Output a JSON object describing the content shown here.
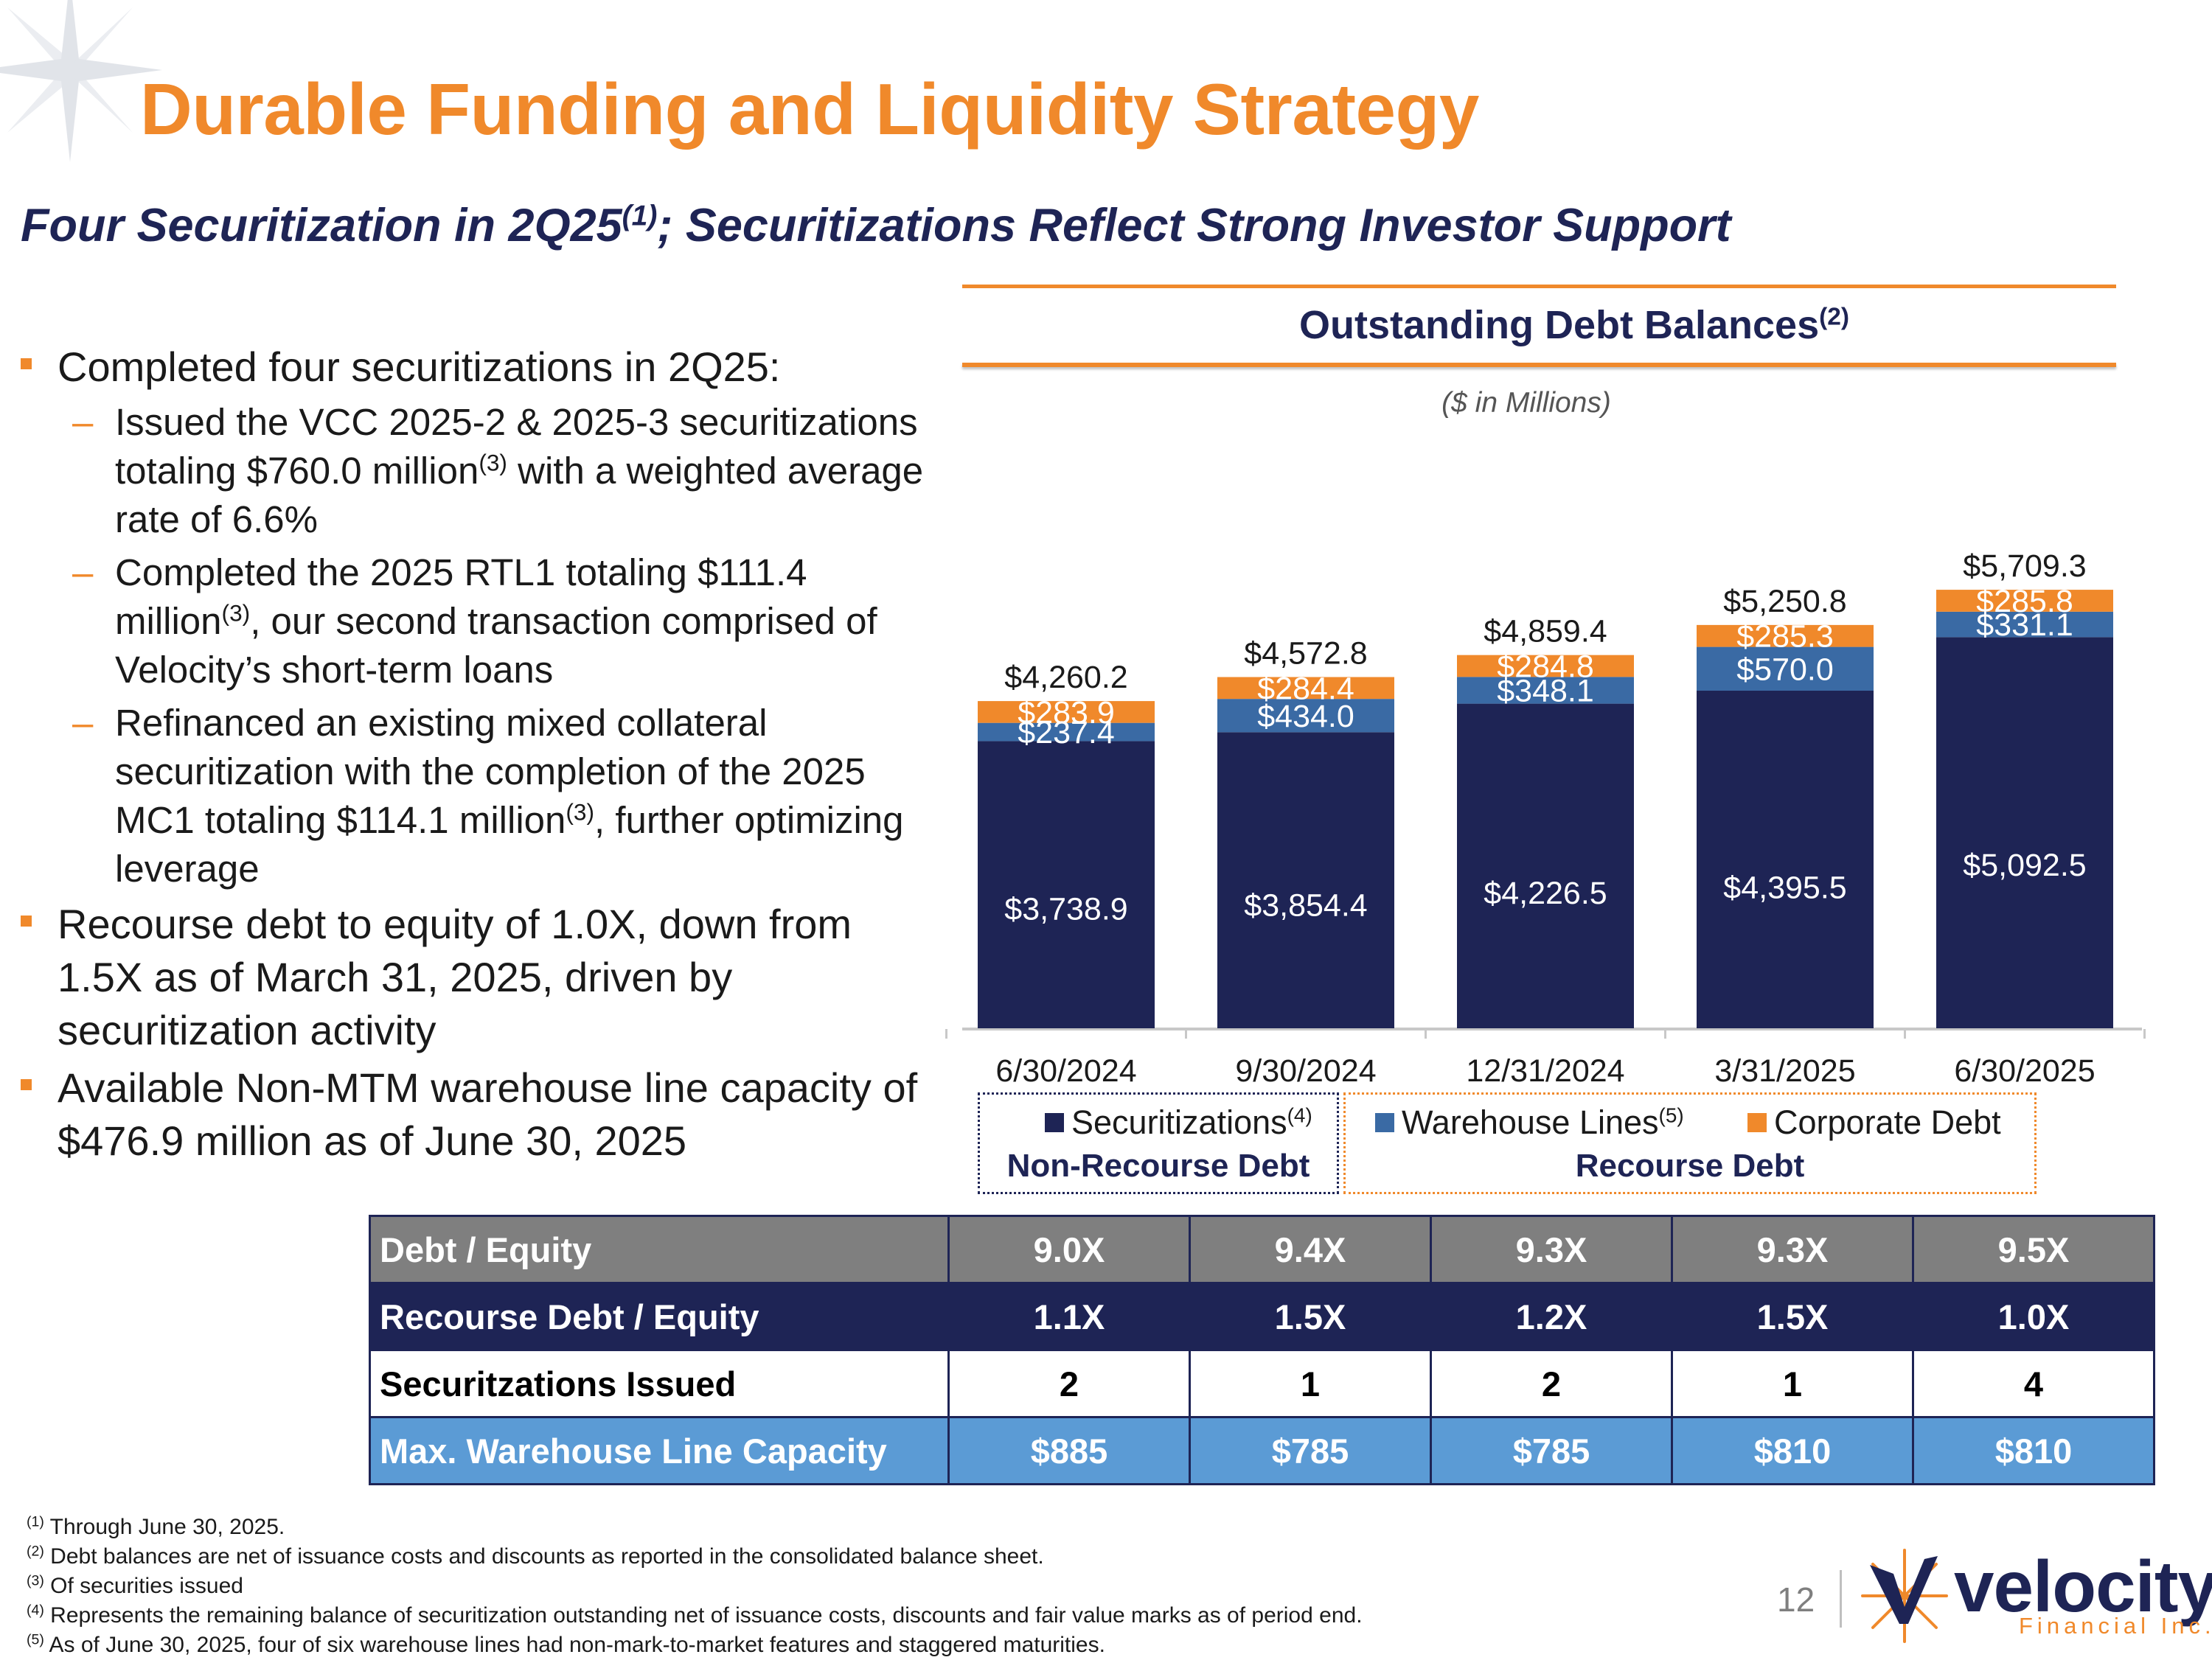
{
  "header": {
    "title": "Durable Funding and Liquidity Strategy",
    "subtitle_pre": "Four Securitization in 2Q25",
    "subtitle_sup": "(1)",
    "subtitle_post": "; Securitizations Reflect Strong Investor Support"
  },
  "bullets": {
    "b1": "Completed four securitizations in 2Q25:",
    "b1_1_pre": "Issued the VCC 2025-2 & 2025-3 securitizations totaling $760.0 million",
    "b1_1_sup": "(3)",
    "b1_1_post": " with a weighted average rate of 6.6%",
    "b1_2_pre": "Completed the 2025 RTL1 totaling $111.4 million",
    "b1_2_sup": "(3)",
    "b1_2_post": ", our second transaction comprised of Velocity’s short-term loans",
    "b1_3_pre": "Refinanced an existing mixed collateral securitization with the completion of the 2025 MC1 totaling $114.1 million",
    "b1_3_sup": "(3)",
    "b1_3_post": ", further optimizing leverage",
    "b2": "Recourse debt to equity of 1.0X, down from 1.5X as of March 31, 2025, driven by securitization activity",
    "b3": "Available Non-MTM warehouse line capacity of $476.9 million as of June 30, 2025",
    "dash": "–"
  },
  "chart_header": {
    "title": "Outstanding Debt Balances",
    "title_sup": "(2)",
    "units": "($ in Millions)"
  },
  "chart_data": {
    "type": "bar",
    "stacked": true,
    "title": "Outstanding Debt Balances",
    "ylabel": "$ in Millions",
    "ylim": [
      0,
      6000
    ],
    "categories": [
      "6/30/2024",
      "9/30/2024",
      "12/31/2024",
      "3/31/2025",
      "6/30/2025"
    ],
    "series": [
      {
        "name": "Securitizations",
        "color": "#1e2455",
        "values": [
          3738.9,
          3854.4,
          4226.5,
          4395.5,
          5092.5
        ],
        "labels": [
          "$3,738.9",
          "$3,854.4",
          "$4,226.5",
          "$4,395.5",
          "$5,092.5"
        ]
      },
      {
        "name": "Warehouse Lines",
        "color": "#3a6aa4",
        "values": [
          237.4,
          434.0,
          348.1,
          570.0,
          331.1
        ],
        "labels": [
          "$237.4",
          "$434.0",
          "$348.1",
          "$570.0",
          "$331.1"
        ]
      },
      {
        "name": "Corporate Debt",
        "color": "#f0892b",
        "values": [
          283.9,
          284.4,
          284.8,
          285.3,
          285.8
        ],
        "labels": [
          "$283.9",
          "$284.4",
          "$284.8",
          "$285.3",
          "$285.8"
        ]
      }
    ],
    "totals": [
      4260.2,
      4572.8,
      4859.4,
      5250.8,
      5709.3
    ],
    "total_labels": [
      "$4,260.2",
      "$4,572.8",
      "$4,859.4",
      "$5,250.8",
      "$5,709.3"
    ],
    "legend": {
      "securitizations": "Securitizations",
      "securitizations_sup": "(4)",
      "warehouse": "Warehouse Lines",
      "warehouse_sup": "(5)",
      "corporate": "Corporate Debt",
      "non_recourse": "Non-Recourse Debt",
      "recourse": "Recourse Debt"
    }
  },
  "table": {
    "rows": [
      {
        "label": "Debt / Equity",
        "values": [
          "9.0X",
          "9.4X",
          "9.3X",
          "9.3X",
          "9.5X"
        ]
      },
      {
        "label": "Recourse Debt / Equity",
        "values": [
          "1.1X",
          "1.5X",
          "1.2X",
          "1.5X",
          "1.0X"
        ]
      },
      {
        "label": "Securitzations Issued",
        "values": [
          "2",
          "1",
          "2",
          "1",
          "4"
        ]
      },
      {
        "label": "Max. Warehouse Line Capacity",
        "values": [
          "$885",
          "$785",
          "$785",
          "$810",
          "$810"
        ]
      }
    ]
  },
  "footnotes": [
    {
      "num": "(1)",
      "text": " Through June 30, 2025."
    },
    {
      "num": "(2)",
      "text": " Debt balances are net of issuance costs and discounts as reported in the consolidated balance sheet."
    },
    {
      "num": "(3)",
      "text": " Of securities issued"
    },
    {
      "num": "(4)",
      "text": " Represents the remaining balance of securitization outstanding net of issuance costs, discounts and fair value marks as of period end."
    },
    {
      "num": "(5)",
      "text": " As of June 30, 2025, four of six warehouse lines had non-mark-to-market features and staggered maturities."
    }
  ],
  "footer": {
    "page_number": "12",
    "logo_word": "velocity",
    "logo_sub": "Financial Inc."
  },
  "colors": {
    "accent": "#f0892b",
    "navy": "#1e2455",
    "blue": "#3a6aa4",
    "table_blue": "#5b9bd5",
    "gray": "#7f7f7f"
  }
}
